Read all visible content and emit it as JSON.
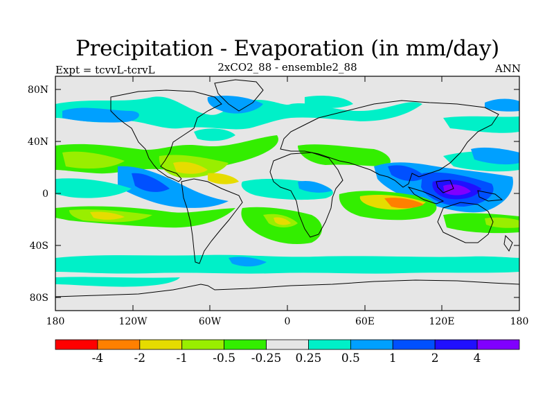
{
  "title": "Precipitation - Evaporation (in mm/day)",
  "left_label": "Expt = tcvvL-tcrvL",
  "center_label": "2xCO2_88 - ensemble2_88",
  "right_label": "ANN",
  "y_ticks": [
    "80N",
    "40N",
    "0",
    "40S",
    "80S"
  ],
  "x_ticks": [
    "180",
    "120W",
    "60W",
    "0",
    "60E",
    "120E",
    "180"
  ],
  "colorbar": {
    "colors": [
      "#ff0000",
      "#ff8000",
      "#e6dc00",
      "#99ee00",
      "#33ee00",
      "#e6e6e6",
      "#00f0c8",
      "#00a0ff",
      "#0050ff",
      "#2010ff",
      "#8000ff"
    ],
    "labels": [
      "-4",
      "-2",
      "-1",
      "-0.5",
      "-0.25",
      "0.25",
      "0.5",
      "1",
      "2",
      "4"
    ]
  },
  "map": {
    "background_color": "#e6e6e6"
  }
}
